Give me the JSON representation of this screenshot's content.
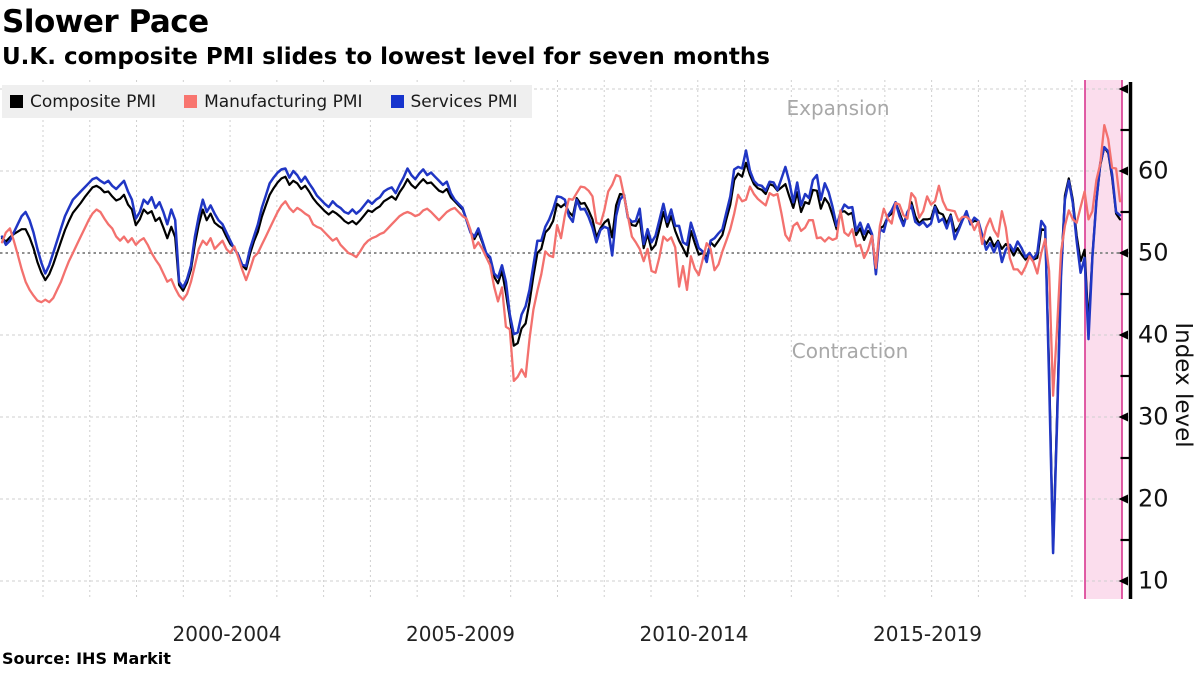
{
  "header": {
    "title": "Slower Pace",
    "subtitle": "U.K. composite PMI slides to lowest level for seven months"
  },
  "source": "Source: IHS Markit",
  "legend": {
    "items": [
      {
        "label": "Composite PMI",
        "color": "#000000"
      },
      {
        "label": "Manufacturing PMI",
        "color": "#f8756f"
      },
      {
        "label": "Services PMI",
        "color": "#1634cd"
      }
    ]
  },
  "annotations": {
    "expansion": "Expansion",
    "contraction": "Contraction"
  },
  "colors": {
    "grid": "#cfcfcf",
    "reference_line": "#8f8f8f",
    "band_fill": "#fbdded",
    "band_border": "#d9368f",
    "axis": "#000000",
    "annotation_text": "#a8a8a8"
  },
  "chart_data": {
    "type": "line",
    "title": "Slower Pace",
    "frequency": "monthly",
    "x_start": "1998-01",
    "x_end": "2021-09",
    "ylabel": "Index level",
    "yticks": [
      10,
      20,
      30,
      40,
      50,
      60
    ],
    "ylim": [
      7.5,
      71
    ],
    "reference_line": 50,
    "grid": true,
    "legend_position": "top-left",
    "xtick_labels": [
      "2000-2004",
      "2005-2009",
      "2010-2014",
      "2015-2019"
    ],
    "highlight_band": {
      "note": "recent months highlighted",
      "from": "2021-02",
      "to": "2021-12"
    },
    "series": [
      {
        "name": "Composite PMI",
        "color": "#000000",
        "values": [
          51.8,
          51.4,
          51.9,
          52.3,
          52.6,
          52.9,
          52.9,
          51.9,
          50.6,
          48.9,
          47.6,
          46.7,
          47.4,
          48.6,
          50.0,
          51.4,
          52.8,
          53.9,
          54.9,
          55.5,
          56.1,
          56.8,
          57.4,
          58.0,
          58.2,
          57.9,
          57.4,
          57.5,
          56.9,
          56.4,
          56.6,
          57.1,
          55.9,
          55.3,
          53.4,
          54.1,
          55.3,
          54.8,
          55.1,
          53.9,
          54.3,
          53.1,
          51.8,
          53.2,
          51.9,
          46.1,
          45.4,
          46.4,
          48.0,
          51.1,
          53.5,
          55.3,
          54.0,
          54.8,
          53.7,
          53.3,
          53.0,
          52.0,
          51.1,
          50.6,
          49.7,
          48.5,
          48.0,
          49.9,
          51.4,
          52.6,
          54.4,
          55.8,
          57.1,
          57.9,
          58.6,
          59.1,
          59.3,
          58.3,
          58.8,
          58.5,
          57.8,
          58.2,
          57.5,
          56.7,
          56.1,
          55.6,
          55.1,
          54.7,
          55.1,
          54.8,
          54.4,
          53.9,
          53.6,
          53.9,
          53.5,
          54.0,
          54.6,
          55.2,
          55.0,
          55.4,
          55.7,
          56.3,
          56.6,
          56.9,
          56.5,
          57.4,
          58.1,
          59.0,
          58.3,
          57.9,
          58.5,
          59.0,
          58.5,
          58.6,
          58.1,
          57.6,
          57.4,
          57.8,
          56.8,
          56.3,
          55.8,
          55.3,
          54.1,
          52.6,
          51.7,
          52.6,
          51.3,
          49.9,
          49.3,
          47.1,
          46.3,
          47.8,
          45.1,
          42.1,
          38.7,
          39.0,
          40.8,
          41.4,
          44.0,
          47.2,
          50.0,
          50.5,
          52.5,
          53.0,
          53.9,
          56.0,
          55.6,
          56.0,
          55.0,
          54.5,
          56.7,
          56.0,
          56.1,
          55.2,
          54.1,
          51.9,
          53.0,
          53.7,
          54.1,
          51.9,
          55.8,
          57.2,
          57.1,
          54.4,
          53.4,
          53.3,
          54.2,
          50.6,
          52.3,
          50.4,
          51.0,
          52.9,
          55.0,
          53.2,
          54.5,
          52.7,
          51.5,
          50.6,
          49.6,
          52.7,
          51.2,
          49.8,
          50.0,
          49.5,
          51.3,
          50.8,
          51.5,
          52.2,
          54.1,
          55.9,
          58.9,
          59.7,
          59.3,
          61.0,
          59.5,
          58.4,
          57.9,
          57.7,
          57.2,
          58.4,
          58.2,
          57.6,
          58.0,
          58.4,
          56.9,
          55.5,
          57.4,
          55.0,
          56.2,
          56.0,
          57.7,
          57.6,
          55.4,
          56.7,
          56.0,
          54.6,
          52.9,
          55.0,
          55.1,
          54.7,
          54.9,
          52.2,
          53.0,
          51.6,
          52.7,
          52.2,
          47.5,
          53.0,
          53.3,
          54.4,
          54.8,
          56.2,
          54.9,
          53.6,
          54.8,
          56.2,
          54.5,
          53.6,
          54.1,
          54.1,
          54.2,
          55.8,
          54.9,
          54.7,
          53.6,
          54.7,
          52.6,
          53.1,
          54.1,
          54.9,
          53.6,
          53.9,
          53.9,
          51.9,
          51.1,
          51.9,
          50.8,
          51.5,
          50.5,
          51.1,
          50.6,
          49.7,
          50.6,
          49.8,
          49.2,
          49.9,
          49.2,
          49.4,
          52.9,
          52.8,
          36.0,
          13.8,
          30.0,
          47.7,
          57.0,
          59.1,
          56.5,
          52.1,
          49.0,
          50.4,
          41.2,
          49.6,
          56.4,
          60.7,
          62.9,
          62.2,
          59.2,
          54.8,
          54.1
        ]
      },
      {
        "name": "Manufacturing PMI",
        "color": "#f3716e",
        "values": [
          51.3,
          52.5,
          53.0,
          51.5,
          49.8,
          48.0,
          46.5,
          45.5,
          44.8,
          44.2,
          44.0,
          44.3,
          44.0,
          44.5,
          45.5,
          46.5,
          47.8,
          49.0,
          50.0,
          51.0,
          52.0,
          53.0,
          54.0,
          54.8,
          55.3,
          55.0,
          54.2,
          53.5,
          53.0,
          52.0,
          51.5,
          52.0,
          51.3,
          51.8,
          51.0,
          51.5,
          51.8,
          51.0,
          50.0,
          49.2,
          48.5,
          47.5,
          46.5,
          46.8,
          45.7,
          44.8,
          44.3,
          45.0,
          46.5,
          48.5,
          50.5,
          51.5,
          51.0,
          51.8,
          50.5,
          51.0,
          51.5,
          50.5,
          50.0,
          50.8,
          49.5,
          48.0,
          46.7,
          48.0,
          49.5,
          50.0,
          51.0,
          52.0,
          53.0,
          54.0,
          55.0,
          55.8,
          56.3,
          55.5,
          55.0,
          55.5,
          55.2,
          54.8,
          54.5,
          53.5,
          53.2,
          53.0,
          52.5,
          52.0,
          51.5,
          51.8,
          51.0,
          50.5,
          50.0,
          49.8,
          49.5,
          50.2,
          51.0,
          51.5,
          51.8,
          52.0,
          52.3,
          52.5,
          53.0,
          53.5,
          54.0,
          54.5,
          54.8,
          55.0,
          54.8,
          54.5,
          54.7,
          55.2,
          55.4,
          55.0,
          54.5,
          54.0,
          54.5,
          55.0,
          55.3,
          55.5,
          55.0,
          54.5,
          54.2,
          52.8,
          50.6,
          51.3,
          50.5,
          49.5,
          48.5,
          45.9,
          44.1,
          45.8,
          41.0,
          40.7,
          34.4,
          34.9,
          35.8,
          34.9,
          39.5,
          43.1,
          45.4,
          47.4,
          50.2,
          49.7,
          49.5,
          53.4,
          51.8,
          54.6,
          56.6,
          56.5,
          57.3,
          58.1,
          58.0,
          57.6,
          56.9,
          53.7,
          53.5,
          55.2,
          57.5,
          58.3,
          59.5,
          59.3,
          57.0,
          54.5,
          52.0,
          51.3,
          50.5,
          49.0,
          50.5,
          47.8,
          47.6,
          49.5,
          52.0,
          51.5,
          51.9,
          50.7,
          45.9,
          48.4,
          45.5,
          49.6,
          48.1,
          47.3,
          49.2,
          51.2,
          50.5,
          47.9,
          48.6,
          50.2,
          51.5,
          52.9,
          54.8,
          57.1,
          56.3,
          56.5,
          58.1,
          57.2,
          56.6,
          56.2,
          55.8,
          57.3,
          57.0,
          57.2,
          54.8,
          52.2,
          51.5,
          53.3,
          53.7,
          52.7,
          53.1,
          54.0,
          54.0,
          51.8,
          51.9,
          51.4,
          51.9,
          51.6,
          51.8,
          55.2,
          52.5,
          52.1,
          52.9,
          50.8,
          51.0,
          49.4,
          50.4,
          52.1,
          48.2,
          53.3,
          55.4,
          54.2,
          53.6,
          56.1,
          55.9,
          54.6,
          54.2,
          57.3,
          56.7,
          54.3,
          55.1,
          56.9,
          55.9,
          56.3,
          58.2,
          56.3,
          55.3,
          55.2,
          55.1,
          53.9,
          54.4,
          54.4,
          54.0,
          52.8,
          53.8,
          51.1,
          53.1,
          54.2,
          52.8,
          52.0,
          55.1,
          53.1,
          49.4,
          48.0,
          48.0,
          47.4,
          48.3,
          49.6,
          48.9,
          47.5,
          50.0,
          51.7,
          47.8,
          32.6,
          40.7,
          50.1,
          53.3,
          55.2,
          54.1,
          53.7,
          55.6,
          57.5,
          54.1,
          55.1,
          58.9,
          60.9,
          65.6,
          63.9,
          60.4,
          60.3,
          56.3
        ]
      },
      {
        "name": "Services PMI",
        "color": "#2036c4",
        "values": [
          52.0,
          51.0,
          51.5,
          52.5,
          53.5,
          54.5,
          55.0,
          54.0,
          52.5,
          50.5,
          48.8,
          47.5,
          48.5,
          50.0,
          51.5,
          53.0,
          54.5,
          55.5,
          56.5,
          57.0,
          57.5,
          58.0,
          58.5,
          59.0,
          59.2,
          58.8,
          58.5,
          58.8,
          58.2,
          57.8,
          58.3,
          58.8,
          57.5,
          56.5,
          54.2,
          55.0,
          56.5,
          56.0,
          56.8,
          55.5,
          56.2,
          55.0,
          53.5,
          55.3,
          54.0,
          46.5,
          45.8,
          46.8,
          48.5,
          52.0,
          54.5,
          56.5,
          55.0,
          55.8,
          54.8,
          54.0,
          53.5,
          52.5,
          51.5,
          50.5,
          49.8,
          48.6,
          48.4,
          50.5,
          52.0,
          53.5,
          55.5,
          57.0,
          58.5,
          59.2,
          59.8,
          60.2,
          60.3,
          59.2,
          60.0,
          59.5,
          58.7,
          59.3,
          58.5,
          57.8,
          57.0,
          56.5,
          56.0,
          55.6,
          56.3,
          55.8,
          55.5,
          55.0,
          54.8,
          55.3,
          54.8,
          55.2,
          55.8,
          56.4,
          56.0,
          56.5,
          56.8,
          57.5,
          57.8,
          58.0,
          57.3,
          58.3,
          59.2,
          60.3,
          59.5,
          59.0,
          59.7,
          60.2,
          59.5,
          59.8,
          59.3,
          58.8,
          58.3,
          58.7,
          57.3,
          56.5,
          56.0,
          55.5,
          54.0,
          52.5,
          52.0,
          53.0,
          51.5,
          50.0,
          49.5,
          47.5,
          47.0,
          48.5,
          46.5,
          42.5,
          40.1,
          40.3,
          42.5,
          43.5,
          45.5,
          48.5,
          51.5,
          51.5,
          53.2,
          54.1,
          55.3,
          56.9,
          56.8,
          56.5,
          54.5,
          53.8,
          56.5,
          55.3,
          55.4,
          54.4,
          53.1,
          51.3,
          52.8,
          53.2,
          53.0,
          49.7,
          54.5,
          56.5,
          57.1,
          54.3,
          53.8,
          53.9,
          55.4,
          51.1,
          52.9,
          51.3,
          52.1,
          54.0,
          56.0,
          53.8,
          55.3,
          53.3,
          53.3,
          51.3,
          51.0,
          53.7,
          52.2,
          50.6,
          50.2,
          48.9,
          51.5,
          51.8,
          52.4,
          52.9,
          54.9,
          56.9,
          60.2,
          60.5,
          60.3,
          62.5,
          60.0,
          58.8,
          58.3,
          58.2,
          57.6,
          58.7,
          58.6,
          57.7,
          59.1,
          60.5,
          58.7,
          56.2,
          58.6,
          55.8,
          57.2,
          56.7,
          58.9,
          59.5,
          56.5,
          58.5,
          57.4,
          55.6,
          53.3,
          54.9,
          55.9,
          55.5,
          55.6,
          52.7,
          53.7,
          52.3,
          53.5,
          52.3,
          47.4,
          52.9,
          52.6,
          54.5,
          55.2,
          56.2,
          54.5,
          53.3,
          55.0,
          55.8,
          53.8,
          53.4,
          53.8,
          53.2,
          53.6,
          55.6,
          53.8,
          54.2,
          53.0,
          54.5,
          51.7,
          52.8,
          54.0,
          55.1,
          53.5,
          54.3,
          53.9,
          52.2,
          50.4,
          51.2,
          50.1,
          51.3,
          48.9,
          50.4,
          51.0,
          50.2,
          51.4,
          50.6,
          49.5,
          50.0,
          49.3,
          50.0,
          53.9,
          53.2,
          34.5,
          13.4,
          29.0,
          47.1,
          56.5,
          58.8,
          56.1,
          51.4,
          47.6,
          49.4,
          39.5,
          49.5,
          56.3,
          61.0,
          62.9,
          62.4,
          59.6,
          55.0,
          54.6
        ]
      }
    ]
  }
}
